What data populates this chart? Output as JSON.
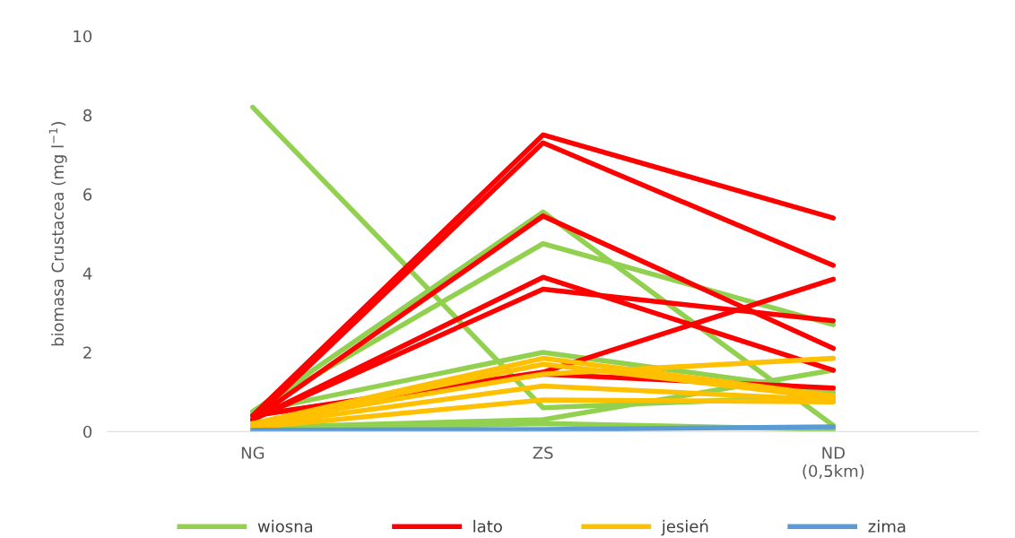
{
  "chart_data": {
    "type": "line",
    "ylabel": "biomasa Crustacea (mg l$^{−1}$)",
    "categories": [
      "NG",
      "ZS",
      "ND\n(0,5km)"
    ],
    "ylim": [
      0,
      10
    ],
    "yticks": [
      0,
      2,
      4,
      6,
      8,
      10
    ],
    "grid": false,
    "legend": "bottom",
    "marker": "none",
    "line_style": "solid",
    "series": [
      {
        "name": "wiosna",
        "color": "#92d050",
        "values": [
          8.2,
          0.6,
          0.9
        ]
      },
      {
        "color": "#92d050",
        "values": [
          0.5,
          5.55,
          0.15
        ]
      },
      {
        "color": "#92d050",
        "values": [
          0.5,
          4.75,
          2.7
        ]
      },
      {
        "color": "#92d050",
        "values": [
          0.5,
          2.0,
          1.0
        ]
      },
      {
        "color": "#92d050",
        "values": [
          0.1,
          0.3,
          1.55
        ]
      },
      {
        "color": "#92d050",
        "values": [
          0.05,
          0.2,
          0.05
        ]
      },
      {
        "name": "lato",
        "color": "#ff0000",
        "values": [
          0.4,
          7.5,
          5.4
        ]
      },
      {
        "color": "#ff0000",
        "values": [
          0.3,
          7.3,
          4.2
        ]
      },
      {
        "color": "#ff0000",
        "values": [
          0.3,
          5.45,
          2.1
        ]
      },
      {
        "color": "#ff0000",
        "values": [
          0.3,
          3.9,
          1.55
        ]
      },
      {
        "color": "#ff0000",
        "values": [
          0.3,
          3.6,
          2.8
        ]
      },
      {
        "color": "#ff0000",
        "values": [
          0.4,
          1.5,
          3.85
        ]
      },
      {
        "color": "#ff0000",
        "values": [
          0.4,
          1.45,
          1.1
        ]
      },
      {
        "name": "jesień",
        "color": "#ffc000",
        "values": [
          0.2,
          1.85,
          0.9
        ]
      },
      {
        "color": "#ffc000",
        "values": [
          0.2,
          1.45,
          1.85
        ]
      },
      {
        "color": "#ffc000",
        "values": [
          0.2,
          1.7,
          0.85
        ]
      },
      {
        "color": "#ffc000",
        "values": [
          0.15,
          1.15,
          0.8
        ]
      },
      {
        "color": "#ffc000",
        "values": [
          0.1,
          0.8,
          0.75
        ]
      },
      {
        "name": "zima",
        "color": "#5b9bd5",
        "values": [
          0.03,
          0.05,
          0.12
        ]
      }
    ]
  }
}
